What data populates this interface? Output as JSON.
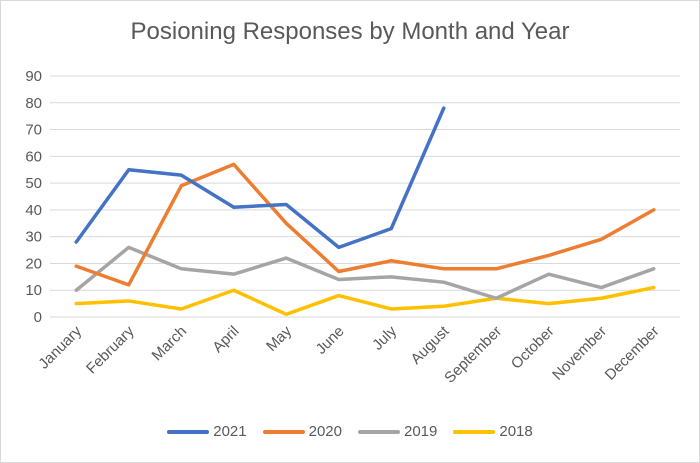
{
  "chart_data": {
    "type": "line",
    "title": "Posioning Responses by Month and Year",
    "xlabel": "",
    "ylabel": "",
    "categories": [
      "January",
      "February",
      "March",
      "April",
      "May",
      "June",
      "July",
      "August",
      "September",
      "October",
      "November",
      "December"
    ],
    "ylim": [
      0,
      90
    ],
    "yticks": [
      0,
      10,
      20,
      30,
      40,
      50,
      60,
      70,
      80,
      90
    ],
    "grid": true,
    "legend_position": "bottom",
    "series": [
      {
        "name": "2021",
        "color": "#4472C4",
        "values": [
          28,
          55,
          53,
          41,
          42,
          26,
          33,
          78,
          null,
          null,
          null,
          null
        ]
      },
      {
        "name": "2020",
        "color": "#ED7D31",
        "values": [
          19,
          12,
          49,
          57,
          35,
          17,
          21,
          18,
          18,
          23,
          29,
          40
        ]
      },
      {
        "name": "2019",
        "color": "#A5A5A5",
        "values": [
          10,
          26,
          18,
          16,
          22,
          14,
          15,
          13,
          7,
          16,
          11,
          18
        ]
      },
      {
        "name": "2018",
        "color": "#FFC000",
        "values": [
          5,
          6,
          3,
          10,
          1,
          8,
          3,
          4,
          7,
          5,
          7,
          11
        ]
      }
    ]
  }
}
